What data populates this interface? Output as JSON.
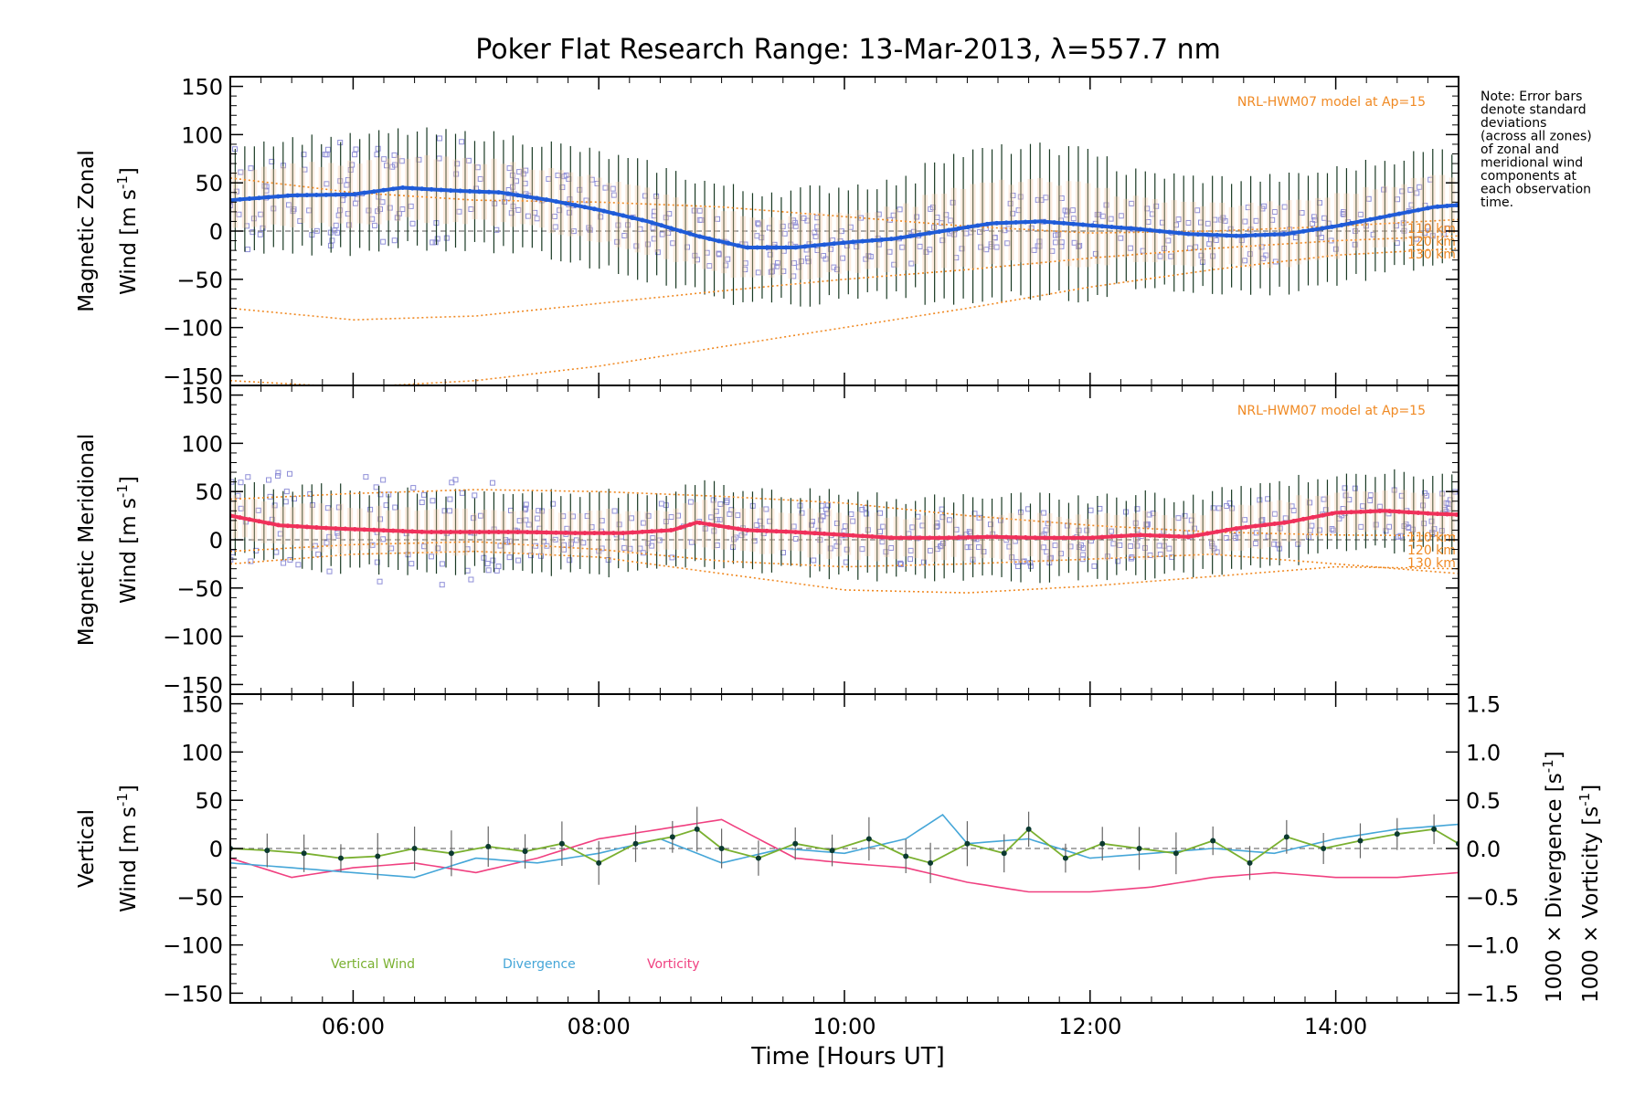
{
  "chart_data": {
    "type": "line",
    "title": "Poker Flat Research Range: 13-Mar-2013, λ=557.7 nm",
    "xlabel": "Time [Hours UT]",
    "x_ticks": [
      "06:00",
      "08:00",
      "10:00",
      "12:00",
      "14:00"
    ],
    "x_range_hours": [
      5.0,
      15.0
    ],
    "note_lines": [
      "Note: Error bars",
      "denote standard",
      "deviations",
      "(across all zones)",
      "of zonal and",
      "meridional wind",
      "components at",
      "each observation",
      "time."
    ],
    "colors": {
      "zonal": "#1f5bd8",
      "meridional": "#f0305a",
      "model": "#f08a24",
      "scatter": "#8f8fd8",
      "errorbar": "#1a3a24",
      "vertical": "#7ab030",
      "divergence": "#45a6d8",
      "vorticity": "#f04080",
      "vertical_label": "#66aa22"
    },
    "panels": [
      {
        "id": "zonal",
        "ylabel_line1": "Magnetic Zonal",
        "ylabel_line2_prefix": "Wind [m s",
        "ylabel_sup": "-1",
        "ylabel_suffix": "]",
        "ylim": [
          -160,
          160
        ],
        "yticks": [
          "150",
          "100",
          "50",
          "0",
          "−50",
          "−100",
          "−150"
        ],
        "model_label": "NRL-HWM07 model at Ap=15",
        "model_alt_labels": [
          "110 km",
          "120 km",
          "130 km"
        ],
        "series_time": [
          5.0,
          5.5,
          6.0,
          6.4,
          6.8,
          7.2,
          7.6,
          8.0,
          8.4,
          8.8,
          9.2,
          9.6,
          10.0,
          10.4,
          10.8,
          11.2,
          11.6,
          12.0,
          12.4,
          12.8,
          13.2,
          13.6,
          14.0,
          14.4,
          14.8,
          15.0
        ],
        "series_values": [
          32,
          37,
          38,
          45,
          42,
          40,
          32,
          22,
          10,
          -5,
          -17,
          -17,
          -12,
          -8,
          0,
          8,
          10,
          6,
          2,
          -3,
          -5,
          -3,
          5,
          15,
          25,
          27
        ],
        "model_curves": [
          {
            "name": "110 km",
            "time": [
              5.0,
              6.0,
              7.0,
              8.0,
              9.0,
              10.0,
              11.0,
              12.0,
              13.0,
              14.0,
              15.0
            ],
            "values": [
              55,
              40,
              32,
              30,
              25,
              15,
              5,
              -2,
              0,
              5,
              12
            ]
          },
          {
            "name": "120 km",
            "time": [
              5.0,
              6.0,
              7.0,
              8.0,
              9.0,
              10.0,
              11.0,
              12.0,
              13.0,
              14.0,
              15.0
            ],
            "values": [
              -80,
              -92,
              -88,
              -75,
              -62,
              -50,
              -40,
              -28,
              -18,
              -10,
              -5
            ]
          },
          {
            "name": "130 km",
            "time": [
              5.0,
              6.0,
              7.0,
              8.0,
              9.0,
              10.0,
              11.0,
              12.0,
              13.0,
              14.0,
              15.0
            ],
            "values": [
              -155,
              -162,
              -155,
              -140,
              -120,
              -100,
              -80,
              -58,
              -40,
              -25,
              -18
            ]
          }
        ]
      },
      {
        "id": "meridional",
        "ylabel_line1": "Magnetic Meridional",
        "ylabel_line2_prefix": "Wind [m s",
        "ylabel_sup": "-1",
        "ylabel_suffix": "]",
        "ylim": [
          -160,
          160
        ],
        "yticks": [
          "150",
          "100",
          "50",
          "0",
          "−50",
          "−100",
          "−150"
        ],
        "model_label": "NRL-HWM07 model at Ap=15",
        "model_alt_labels": [
          "110 km",
          "120 km",
          "130 km"
        ],
        "series_time": [
          5.0,
          5.4,
          5.8,
          6.2,
          6.6,
          7.0,
          7.4,
          7.8,
          8.2,
          8.6,
          8.8,
          9.2,
          9.6,
          10.0,
          10.4,
          10.8,
          11.2,
          11.6,
          12.0,
          12.4,
          12.8,
          13.2,
          13.6,
          14.0,
          14.4,
          14.8,
          15.0
        ],
        "series_values": [
          25,
          15,
          12,
          10,
          8,
          8,
          8,
          7,
          7,
          10,
          18,
          10,
          8,
          5,
          2,
          2,
          3,
          2,
          2,
          5,
          3,
          12,
          18,
          28,
          30,
          27,
          26
        ],
        "model_curves": [
          {
            "name": "110 km",
            "time": [
              5.0,
              6.0,
              7.0,
              8.0,
              9.0,
              10.0,
              11.0,
              12.0,
              13.0,
              14.0,
              15.0
            ],
            "values": [
              42,
              48,
              52,
              50,
              45,
              38,
              25,
              15,
              8,
              5,
              4
            ]
          },
          {
            "name": "120 km",
            "time": [
              5.0,
              6.0,
              7.0,
              8.0,
              9.0,
              10.0,
              11.0,
              12.0,
              13.0,
              14.0,
              15.0
            ],
            "values": [
              -25,
              -15,
              -12,
              -18,
              -35,
              -52,
              -55,
              -48,
              -38,
              -28,
              -30
            ]
          },
          {
            "name": "130 km",
            "time": [
              5.0,
              6.0,
              7.0,
              8.0,
              9.0,
              10.0,
              11.0,
              12.0,
              13.0,
              14.0,
              15.0
            ],
            "values": [
              -12,
              -5,
              -2,
              -10,
              -22,
              -28,
              -25,
              -20,
              -15,
              -25,
              -35
            ]
          }
        ]
      },
      {
        "id": "vertical",
        "ylabel_line1": "Vertical",
        "ylabel_line2_prefix": "Wind [m s",
        "ylabel_sup": "-1",
        "ylabel_suffix": "]",
        "ylim": [
          -160,
          160
        ],
        "yticks": [
          "150",
          "100",
          "50",
          "0",
          "−50",
          "−100",
          "−150"
        ],
        "right_axis_range": [
          -1.6,
          1.6
        ],
        "right_yticks": [
          "1.5",
          "1.0",
          "0.5",
          "0.0",
          "−0.5",
          "−1.0",
          "−1.5"
        ],
        "right_label_divergence": "1000 × Divergence [s",
        "right_label_vorticity": "1000 × Vorticity [s",
        "right_label_sup": "-1",
        "right_label_suffix": "]",
        "legend": [
          "Vertical Wind",
          "Divergence",
          "Vorticity"
        ],
        "vertical_time": [
          5.0,
          5.3,
          5.6,
          5.9,
          6.2,
          6.5,
          6.8,
          7.1,
          7.4,
          7.7,
          8.0,
          8.3,
          8.6,
          8.8,
          9.0,
          9.3,
          9.6,
          9.9,
          10.2,
          10.5,
          10.7,
          11.0,
          11.3,
          11.5,
          11.8,
          12.1,
          12.4,
          12.7,
          13.0,
          13.3,
          13.6,
          13.9,
          14.2,
          14.5,
          14.8,
          15.0
        ],
        "vertical_values": [
          0,
          -2,
          -5,
          -10,
          -8,
          0,
          -5,
          2,
          -3,
          5,
          -15,
          5,
          12,
          20,
          0,
          -10,
          5,
          -2,
          10,
          -8,
          -15,
          5,
          -5,
          20,
          -10,
          5,
          0,
          -5,
          8,
          -15,
          12,
          0,
          8,
          15,
          20,
          5
        ],
        "divergence_time": [
          5.0,
          5.5,
          6.0,
          6.5,
          7.0,
          7.5,
          8.0,
          8.5,
          9.0,
          9.5,
          10.0,
          10.5,
          10.8,
          11.0,
          11.5,
          12.0,
          12.5,
          13.0,
          13.5,
          14.0,
          14.5,
          15.0
        ],
        "divergence_values": [
          -0.15,
          -0.2,
          -0.25,
          -0.3,
          -0.1,
          -0.15,
          -0.05,
          0.1,
          -0.15,
          0.0,
          -0.05,
          0.1,
          0.35,
          0.05,
          0.1,
          -0.1,
          -0.05,
          0.0,
          -0.05,
          0.1,
          0.2,
          0.25
        ],
        "vorticity_time": [
          5.0,
          5.5,
          6.0,
          6.5,
          7.0,
          7.5,
          8.0,
          8.5,
          9.0,
          9.3,
          9.6,
          10.0,
          10.5,
          11.0,
          11.5,
          12.0,
          12.5,
          13.0,
          13.5,
          14.0,
          14.5,
          15.0
        ],
        "vorticity_values": [
          -0.1,
          -0.3,
          -0.2,
          -0.15,
          -0.25,
          -0.1,
          0.1,
          0.2,
          0.3,
          0.1,
          -0.1,
          -0.15,
          -0.2,
          -0.35,
          -0.45,
          -0.45,
          -0.4,
          -0.3,
          -0.25,
          -0.3,
          -0.3,
          -0.25
        ]
      }
    ]
  }
}
